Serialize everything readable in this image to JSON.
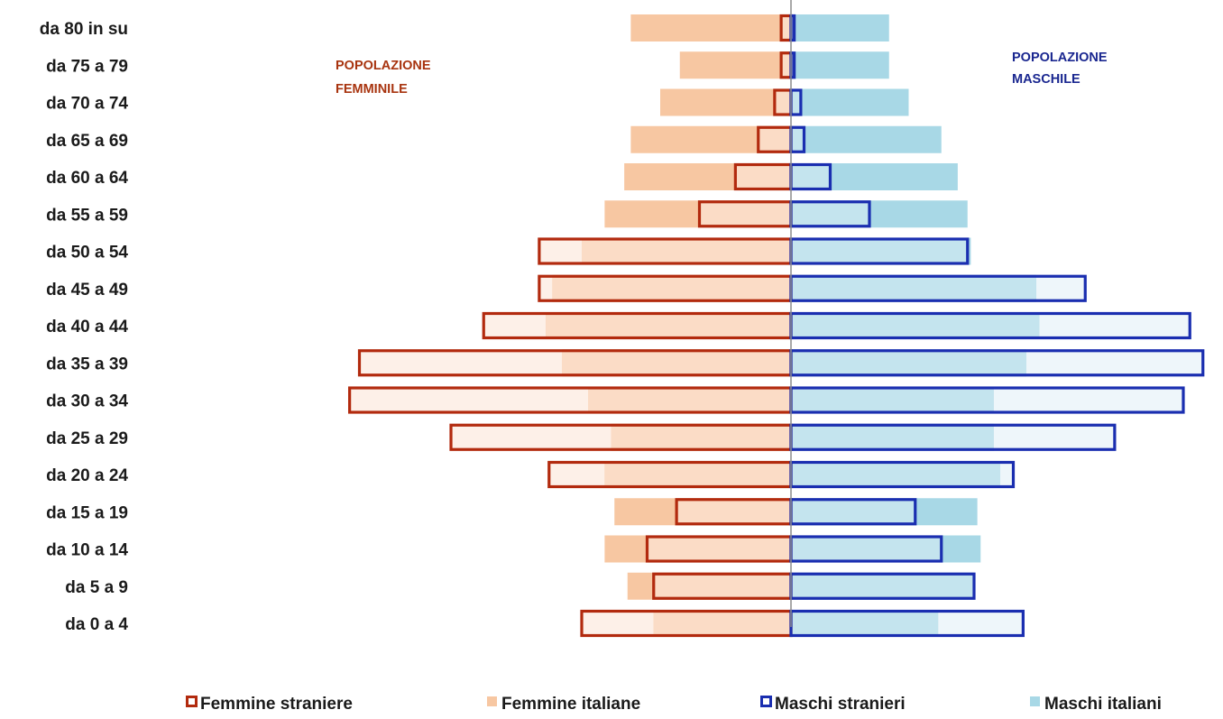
{
  "chart_data": {
    "type": "bar",
    "subtype": "population-pyramid",
    "categories": [
      "da 80 in su",
      "da 75 a 79",
      "da 70 a 74",
      "da 65 a 69",
      "da 60 a 64",
      "da 55 a 59",
      "da 50 a 54",
      "da 45 a 49",
      "da 40 a 44",
      "da 35 a 39",
      "da 30 a 34",
      "da 25 a 29",
      "da 20 a 24",
      "da 15 a 19",
      "da 10 a 14",
      "da 5 a 9",
      "da 0 a 4"
    ],
    "unit": "percent of population",
    "xlim": [
      -7.5,
      7.5
    ],
    "left_title": [
      "POPOLAZIONE",
      "FEMMINILE"
    ],
    "right_title": [
      "POPOLAZIONE",
      "MASCHILE"
    ],
    "series": [
      {
        "name": "Femmine straniere",
        "side": "left",
        "style": "outline",
        "color": "#b22a0e",
        "values": [
          0.15,
          0.15,
          0.25,
          0.5,
          0.85,
          1.4,
          3.85,
          3.85,
          4.7,
          6.6,
          6.75,
          5.2,
          3.7,
          1.75,
          2.2,
          2.1,
          3.2
        ]
      },
      {
        "name": "Femmine italiane",
        "side": "left",
        "style": "fill",
        "color": "#f7c7a2",
        "values": [
          2.45,
          1.7,
          2.0,
          2.45,
          2.55,
          2.85,
          3.2,
          3.65,
          3.75,
          3.5,
          3.1,
          2.75,
          2.85,
          2.7,
          2.85,
          2.5,
          2.1
        ]
      },
      {
        "name": "Maschi stranieri",
        "side": "right",
        "style": "outline",
        "color": "#1a2eb0",
        "values": [
          0.05,
          0.05,
          0.15,
          0.2,
          0.6,
          1.2,
          2.7,
          4.5,
          6.1,
          6.3,
          6.0,
          4.95,
          3.4,
          1.9,
          2.3,
          2.8,
          3.55
        ]
      },
      {
        "name": "Maschi italiani",
        "side": "right",
        "style": "fill",
        "color": "#a8d8e6",
        "values": [
          1.5,
          1.5,
          1.8,
          2.3,
          2.55,
          2.7,
          2.75,
          3.75,
          3.8,
          3.6,
          3.1,
          3.1,
          3.2,
          2.85,
          2.9,
          2.8,
          2.25
        ]
      }
    ],
    "legend_position": "bottom",
    "grid": false
  }
}
